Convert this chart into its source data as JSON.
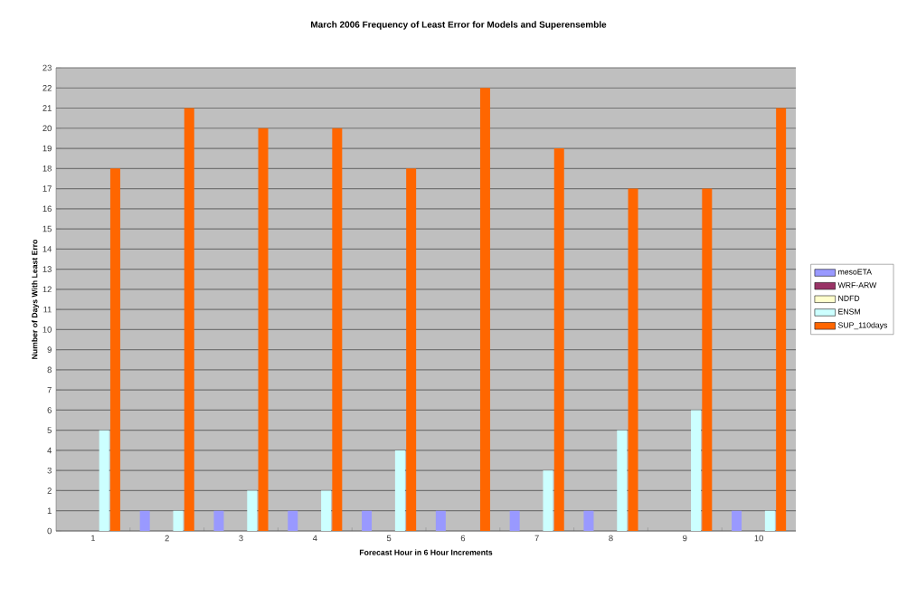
{
  "chart_data": {
    "type": "bar",
    "title": "March 2006 Frequency of Least Error for Models and Superensemble",
    "xlabel": "Forecast Hour in 6 Hour Increments",
    "ylabel": "Number of Days With Least Erro",
    "categories": [
      "1",
      "2",
      "3",
      "4",
      "5",
      "6",
      "7",
      "8",
      "9",
      "10"
    ],
    "series": [
      {
        "name": "mesoETA",
        "color": "#9999ff",
        "values": [
          0,
          1,
          1,
          1,
          1,
          1,
          1,
          1,
          0,
          1
        ]
      },
      {
        "name": "WRF-ARW",
        "color": "#993366",
        "values": [
          0,
          0,
          0,
          0,
          0,
          0,
          0,
          0,
          0,
          0
        ]
      },
      {
        "name": "NDFD",
        "color": "#ffffcc",
        "values": [
          0,
          0,
          0,
          0,
          0,
          0,
          0,
          0,
          0,
          0
        ]
      },
      {
        "name": "ENSM",
        "color": "#ccffff",
        "values": [
          5,
          1,
          2,
          2,
          4,
          0,
          3,
          5,
          6,
          1
        ]
      },
      {
        "name": "SUP_110days",
        "color": "#ff6600",
        "values": [
          18,
          21,
          20,
          20,
          18,
          22,
          19,
          17,
          17,
          21
        ]
      }
    ],
    "ylim": [
      0,
      23
    ],
    "yticks": [
      0,
      1,
      2,
      3,
      4,
      5,
      6,
      7,
      8,
      9,
      10,
      11,
      12,
      13,
      14,
      15,
      16,
      17,
      18,
      19,
      20,
      21,
      22,
      23
    ],
    "grid": "y",
    "legend": "right"
  }
}
